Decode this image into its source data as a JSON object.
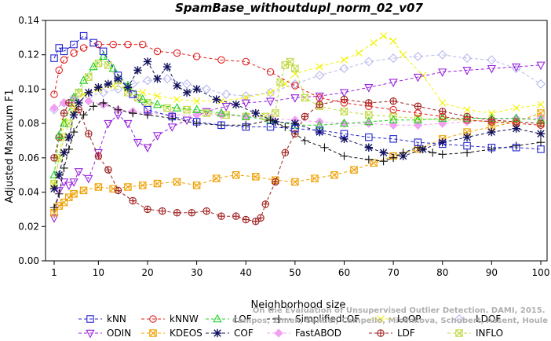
{
  "chart_data": {
    "type": "line",
    "title": "SpamBase_withoutdupl_norm_02_v07",
    "xlabel": "Neighborhood size",
    "ylabel": "Adjusted Maximum F1",
    "xlim": [
      0,
      100
    ],
    "ylim": [
      0,
      0.14
    ],
    "xticks": [
      1,
      10,
      20,
      30,
      40,
      50,
      60,
      70,
      80,
      90,
      100
    ],
    "yticks": [
      "0.00",
      "0.02",
      "0.04",
      "0.06",
      "0.08",
      "0.10",
      "0.12",
      "0.14"
    ],
    "grid": false,
    "legend_position": "bottom",
    "watermark": "Campos, Zimek, Sander, Campello, Micenkova, Schubert, Assent, Houle: On the Evaluation of Unsupervised Outlier Detection. DAMI, 2015.",
    "series": [
      {
        "name": "kNN",
        "color": "#2323d2",
        "marker": "square",
        "x": [
          1,
          2,
          3,
          5,
          7,
          9,
          11,
          14,
          17,
          20,
          25,
          30,
          35,
          40,
          45,
          50,
          55,
          60,
          65,
          70,
          75,
          80,
          85,
          90,
          95,
          100
        ],
        "y": [
          0.118,
          0.124,
          0.122,
          0.126,
          0.131,
          0.127,
          0.122,
          0.108,
          0.097,
          0.088,
          0.084,
          0.081,
          0.079,
          0.078,
          0.078,
          0.077,
          0.076,
          0.074,
          0.072,
          0.071,
          0.069,
          0.068,
          0.067,
          0.066,
          0.066,
          0.065
        ]
      },
      {
        "name": "kNNW",
        "color": "#e02020",
        "marker": "circle",
        "x": [
          1,
          2,
          3,
          5,
          7,
          10,
          13,
          16,
          19,
          22,
          26,
          30,
          35,
          40,
          45,
          50,
          55,
          60,
          65,
          70,
          75,
          80,
          85,
          90,
          95,
          100
        ],
        "y": [
          0.097,
          0.111,
          0.117,
          0.121,
          0.124,
          0.126,
          0.126,
          0.126,
          0.126,
          0.122,
          0.121,
          0.119,
          0.117,
          0.116,
          0.11,
          0.102,
          0.095,
          0.092,
          0.09,
          0.088,
          0.086,
          0.084,
          0.082,
          0.081,
          0.08,
          0.079
        ]
      },
      {
        "name": "LOF",
        "color": "#22d022",
        "marker": "triangle",
        "x": [
          1,
          2,
          3,
          5,
          7,
          9,
          11,
          13,
          16,
          19,
          22,
          26,
          30,
          35,
          40,
          45,
          50,
          55,
          60,
          65,
          70,
          75,
          80,
          85,
          90,
          95,
          100
        ],
        "y": [
          0.05,
          0.073,
          0.08,
          0.095,
          0.105,
          0.113,
          0.119,
          0.112,
          0.102,
          0.094,
          0.091,
          0.089,
          0.088,
          0.086,
          0.084,
          0.082,
          0.079,
          0.079,
          0.08,
          0.081,
          0.082,
          0.082,
          0.083,
          0.083,
          0.083,
          0.083,
          0.082
        ]
      },
      {
        "name": "SimplifiedLOF",
        "color": "#111111",
        "marker": "plus",
        "x": [
          1,
          2,
          3,
          4,
          5,
          7,
          9,
          11,
          14,
          17,
          20,
          25,
          30,
          35,
          40,
          45,
          48,
          52,
          56,
          60,
          65,
          68,
          70,
          72,
          75,
          78,
          80,
          85,
          90,
          95,
          100
        ],
        "y": [
          0.031,
          0.039,
          0.054,
          0.065,
          0.075,
          0.085,
          0.09,
          0.092,
          0.088,
          0.086,
          0.085,
          0.083,
          0.08,
          0.079,
          0.079,
          0.082,
          0.078,
          0.07,
          0.066,
          0.061,
          0.059,
          0.058,
          0.06,
          0.063,
          0.066,
          0.063,
          0.062,
          0.063,
          0.065,
          0.067,
          0.069
        ]
      },
      {
        "name": "LoOP",
        "color": "#f2f200",
        "marker": "cross",
        "x": [
          1,
          2,
          3,
          5,
          7,
          10,
          13,
          16,
          19,
          22,
          26,
          30,
          35,
          40,
          45,
          48,
          50,
          55,
          60,
          63,
          66,
          68,
          70,
          72,
          76,
          80,
          85,
          90,
          95,
          100
        ],
        "y": [
          0.044,
          0.06,
          0.081,
          0.092,
          0.097,
          0.1,
          0.102,
          0.1,
          0.098,
          0.096,
          0.094,
          0.093,
          0.093,
          0.095,
          0.098,
          0.103,
          0.109,
          0.113,
          0.117,
          0.121,
          0.127,
          0.131,
          0.128,
          0.12,
          0.108,
          0.092,
          0.088,
          0.086,
          0.089,
          0.091
        ]
      },
      {
        "name": "LDOF",
        "color": "#b8b8ee",
        "marker": "diamond",
        "x": [
          1,
          3,
          5,
          8,
          11,
          14,
          17,
          20,
          24,
          28,
          32,
          36,
          40,
          45,
          50,
          55,
          60,
          65,
          70,
          75,
          80,
          85,
          90,
          95,
          100
        ],
        "y": [
          0.088,
          0.092,
          0.095,
          0.096,
          0.098,
          0.1,
          0.103,
          0.105,
          0.106,
          0.103,
          0.1,
          0.097,
          0.096,
          0.098,
          0.103,
          0.108,
          0.112,
          0.116,
          0.118,
          0.119,
          0.12,
          0.118,
          0.117,
          0.112,
          0.103
        ]
      },
      {
        "name": "ODIN",
        "color": "#9922dd",
        "marker": "triangle-down",
        "x": [
          1,
          2,
          3,
          4,
          5,
          6,
          8,
          10,
          12,
          14,
          16,
          18,
          20,
          22,
          25,
          28,
          32,
          36,
          40,
          45,
          50,
          55,
          60,
          65,
          70,
          75,
          80,
          85,
          90,
          95,
          100
        ],
        "y": [
          0.025,
          0.041,
          0.046,
          0.044,
          0.046,
          0.052,
          0.048,
          0.063,
          0.08,
          0.085,
          0.08,
          0.069,
          0.066,
          0.073,
          0.078,
          0.082,
          0.087,
          0.09,
          0.092,
          0.093,
          0.095,
          0.096,
          0.098,
          0.101,
          0.104,
          0.107,
          0.11,
          0.111,
          0.112,
          0.113,
          0.114
        ]
      },
      {
        "name": "KDEOS",
        "color": "#f0a000",
        "marker": "square-x",
        "x": [
          1,
          2,
          3,
          4,
          5,
          7,
          10,
          13,
          16,
          19,
          22,
          26,
          30,
          34,
          38,
          42,
          46,
          50,
          54,
          58,
          62,
          66,
          70,
          75,
          80,
          85,
          90,
          95,
          100
        ],
        "y": [
          0.028,
          0.032,
          0.034,
          0.037,
          0.039,
          0.041,
          0.043,
          0.042,
          0.043,
          0.044,
          0.045,
          0.046,
          0.044,
          0.048,
          0.05,
          0.049,
          0.047,
          0.046,
          0.048,
          0.05,
          0.053,
          0.057,
          0.061,
          0.065,
          0.071,
          0.075,
          0.078,
          0.081,
          0.086
        ]
      },
      {
        "name": "COF",
        "color": "#13135e",
        "marker": "asterisk",
        "x": [
          1,
          2,
          3,
          4,
          5,
          6,
          8,
          10,
          12,
          14,
          16,
          18,
          20,
          22,
          24,
          26,
          28,
          30,
          34,
          38,
          42,
          46,
          50,
          55,
          60,
          65,
          68,
          72,
          76,
          80,
          85,
          90,
          95,
          100
        ],
        "y": [
          0.042,
          0.05,
          0.063,
          0.072,
          0.085,
          0.092,
          0.098,
          0.101,
          0.103,
          0.106,
          0.101,
          0.111,
          0.116,
          0.106,
          0.113,
          0.102,
          0.098,
          0.1,
          0.094,
          0.091,
          0.086,
          0.081,
          0.08,
          0.075,
          0.071,
          0.066,
          0.063,
          0.061,
          0.065,
          0.069,
          0.072,
          0.075,
          0.077,
          0.074
        ]
      },
      {
        "name": "FastABOD",
        "color": "#f2a0f2",
        "marker": "diamond-filled",
        "x": [
          1,
          3,
          5,
          8,
          11,
          14,
          17,
          20,
          25,
          30,
          35,
          40,
          45,
          50,
          55,
          60,
          65,
          70,
          75,
          80,
          85,
          90,
          95,
          100
        ],
        "y": [
          0.089,
          0.092,
          0.094,
          0.093,
          0.091,
          0.088,
          0.087,
          0.086,
          0.085,
          0.085,
          0.085,
          0.084,
          0.083,
          0.082,
          0.081,
          0.08,
          0.08,
          0.079,
          0.079,
          0.08,
          0.081,
          0.082,
          0.083,
          0.083
        ]
      },
      {
        "name": "LDF",
        "color": "#a02020",
        "marker": "circle-plus",
        "x": [
          1,
          2,
          3,
          4,
          6,
          8,
          10,
          12,
          14,
          17,
          20,
          23,
          26,
          29,
          32,
          35,
          38,
          40,
          42,
          43,
          44,
          46,
          48,
          50,
          52,
          55,
          60,
          65,
          70,
          75,
          80,
          85,
          90,
          95,
          100
        ],
        "y": [
          0.06,
          0.072,
          0.086,
          0.092,
          0.088,
          0.074,
          0.061,
          0.053,
          0.041,
          0.035,
          0.03,
          0.029,
          0.028,
          0.028,
          0.029,
          0.026,
          0.026,
          0.024,
          0.023,
          0.025,
          0.033,
          0.046,
          0.063,
          0.074,
          0.084,
          0.091,
          0.094,
          0.092,
          0.093,
          0.09,
          0.087,
          0.084,
          0.082,
          0.081,
          0.08
        ]
      },
      {
        "name": "INFLO",
        "color": "#c0d840",
        "marker": "hourglass",
        "x": [
          1,
          2,
          3,
          4,
          5,
          6,
          8,
          10,
          12,
          14,
          16,
          18,
          20,
          24,
          28,
          32,
          36,
          40,
          44,
          46,
          47,
          48,
          49,
          50,
          52,
          55,
          60,
          65,
          70,
          75,
          80,
          85,
          90,
          95,
          100
        ],
        "y": [
          0.045,
          0.06,
          0.072,
          0.08,
          0.088,
          0.098,
          0.107,
          0.115,
          0.114,
          0.105,
          0.098,
          0.095,
          0.092,
          0.089,
          0.088,
          0.086,
          0.085,
          0.084,
          0.084,
          0.086,
          0.104,
          0.114,
          0.116,
          0.112,
          0.095,
          0.09,
          0.087,
          0.085,
          0.084,
          0.083,
          0.082,
          0.082,
          0.081,
          0.081,
          0.08
        ]
      }
    ]
  }
}
